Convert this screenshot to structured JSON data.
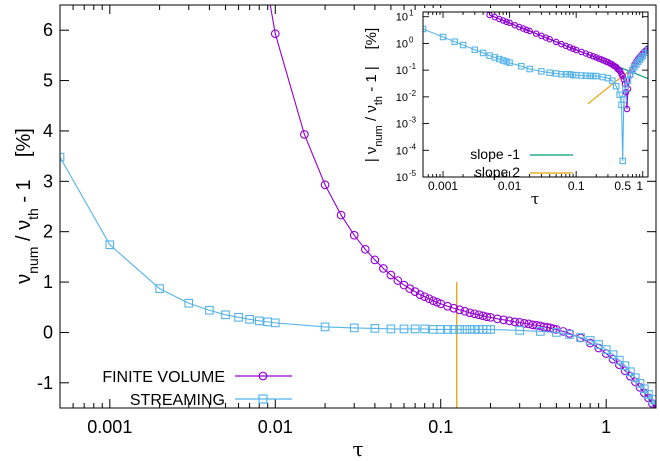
{
  "colors": {
    "finite_volume": "#9400d3",
    "streaming": "#56b4e9",
    "slope_minus1": "#009e73",
    "slope_2": "#e69f00",
    "axes": "#000000"
  },
  "chart_data": [
    {
      "type": "line",
      "xscale": "log",
      "xlim": [
        0.0005,
        2
      ],
      "ylim": [
        -1.5,
        6.5
      ],
      "xlabel": "τ",
      "ylabel": {
        "nu": "ν",
        "sub1": "num",
        "mid": " / ν",
        "sub2": "th",
        "tail": " - 1    [%]"
      },
      "xticks": [
        0.001,
        0.01,
        0.1,
        1
      ],
      "xtick_labels": [
        "0.001",
        "0.01",
        "0.1",
        "1"
      ],
      "yticks": [
        -1,
        0,
        1,
        2,
        3,
        4,
        5,
        6
      ],
      "ytick_labels": [
        "-1",
        "0",
        "1",
        "2",
        "3",
        "4",
        "5",
        "6"
      ],
      "legend_position": "bottom-left",
      "vline": {
        "x": 0.125,
        "y_range": [
          -1.5,
          1.0
        ]
      },
      "series": [
        {
          "name": "FINITE VOLUME",
          "marker": "circle",
          "x": [
            0.005,
            0.01,
            0.015,
            0.02,
            0.025,
            0.03,
            0.035,
            0.04,
            0.045,
            0.05,
            0.055,
            0.06,
            0.065,
            0.07,
            0.075,
            0.08,
            0.085,
            0.09,
            0.095,
            0.1,
            0.11,
            0.12,
            0.13,
            0.14,
            0.15,
            0.16,
            0.17,
            0.18,
            0.19,
            0.2,
            0.22,
            0.24,
            0.26,
            0.28,
            0.3,
            0.32,
            0.34,
            0.36,
            0.38,
            0.4,
            0.42,
            0.44,
            0.46,
            0.48,
            0.5,
            0.55,
            0.6,
            0.7,
            0.8,
            0.9,
            1.0,
            1.1,
            1.2,
            1.3,
            1.4,
            1.5,
            1.6,
            1.7,
            1.8,
            1.9,
            2.0
          ],
          "y": [
            11.6,
            5.93,
            3.93,
            2.93,
            2.33,
            1.93,
            1.65,
            1.44,
            1.27,
            1.14,
            1.03,
            0.94,
            0.87,
            0.81,
            0.75,
            0.71,
            0.67,
            0.63,
            0.6,
            0.57,
            0.52,
            0.48,
            0.45,
            0.42,
            0.39,
            0.37,
            0.35,
            0.33,
            0.31,
            0.3,
            0.27,
            0.25,
            0.23,
            0.21,
            0.2,
            0.18,
            0.17,
            0.15,
            0.14,
            0.13,
            0.11,
            0.1,
            0.09,
            0.07,
            0.06,
            0.02,
            -0.02,
            -0.11,
            -0.21,
            -0.31,
            -0.42,
            -0.53,
            -0.64,
            -0.76,
            -0.87,
            -0.98,
            -1.09,
            -1.2,
            -1.3,
            -1.41,
            -1.51
          ]
        },
        {
          "name": "STREAMING",
          "marker": "square",
          "x": [
            0.0005,
            0.001,
            0.002,
            0.003,
            0.004,
            0.005,
            0.006,
            0.007,
            0.008,
            0.009,
            0.01,
            0.02,
            0.03,
            0.04,
            0.05,
            0.06,
            0.07,
            0.08,
            0.09,
            0.1,
            0.11,
            0.12,
            0.13,
            0.14,
            0.15,
            0.16,
            0.17,
            0.18,
            0.19,
            0.2,
            0.3,
            0.4,
            0.5,
            0.6,
            0.7,
            0.8,
            0.9,
            1.0,
            1.1,
            1.2,
            1.3,
            1.4,
            1.5,
            1.6,
            1.7,
            1.8,
            1.9,
            2.0
          ],
          "y": [
            3.48,
            1.74,
            0.87,
            0.58,
            0.44,
            0.35,
            0.3,
            0.26,
            0.23,
            0.21,
            0.19,
            0.11,
            0.09,
            0.08,
            0.07,
            0.07,
            0.07,
            0.07,
            0.06,
            0.06,
            0.06,
            0.06,
            0.06,
            0.06,
            0.06,
            0.06,
            0.06,
            0.06,
            0.06,
            0.06,
            0.04,
            0.02,
            0.0,
            -0.04,
            -0.1,
            -0.16,
            -0.24,
            -0.34,
            -0.44,
            -0.55,
            -0.66,
            -0.78,
            -0.9,
            -1.01,
            -1.12,
            -1.23,
            -1.33,
            -1.43
          ]
        }
      ]
    },
    {
      "type": "line",
      "inset": true,
      "xscale": "log",
      "yscale": "log",
      "xlim": [
        0.0005,
        1.2
      ],
      "ylim": [
        1e-05,
        15
      ],
      "xlabel": "τ",
      "ylabel": {
        "nu": "| ν",
        "sub1": "num",
        "mid": " / ν",
        "sub2": "th",
        "tail": " - 1 |    [%]"
      },
      "xticks": [
        0.001,
        0.01,
        0.1,
        0.5
      ],
      "xtick_labels": [
        "0.001",
        "0.01",
        "0.1",
        "0.5"
      ],
      "xtick_extra_label": {
        "x": 1,
        "text": "1"
      },
      "yticks": [
        1e-05,
        0.0001,
        0.001,
        0.01,
        0.1,
        1,
        10
      ],
      "ytick_labels": [
        [
          "10",
          "-5"
        ],
        [
          "10",
          "-4"
        ],
        [
          "10",
          "-3"
        ],
        [
          "10",
          "-2"
        ],
        [
          "10",
          "-1"
        ],
        [
          "10",
          "0"
        ],
        [
          "10",
          "1"
        ]
      ],
      "legend_position": "bottom-left",
      "reference_lines": [
        {
          "name": "slope -1",
          "x": [
            0.005,
            1.2
          ],
          "y": [
            11.6,
            0.0483
          ]
        },
        {
          "name": "slope 2",
          "x": [
            0.15,
            1.0
          ],
          "y": [
            0.0055,
            0.245
          ]
        }
      ],
      "series": [
        {
          "name": "FINITE VOLUME",
          "marker": "circle",
          "x": [
            0.005,
            0.006,
            0.007,
            0.008,
            0.009,
            0.01,
            0.012,
            0.014,
            0.016,
            0.018,
            0.02,
            0.025,
            0.03,
            0.035,
            0.04,
            0.05,
            0.06,
            0.07,
            0.08,
            0.09,
            0.1,
            0.12,
            0.14,
            0.16,
            0.18,
            0.2,
            0.22,
            0.24,
            0.26,
            0.28,
            0.3,
            0.32,
            0.34,
            0.36,
            0.38,
            0.4,
            0.42,
            0.44,
            0.46,
            0.48,
            0.5,
            0.52,
            0.54,
            0.56,
            0.58,
            0.6,
            0.65,
            0.7,
            0.75,
            0.8,
            0.85,
            0.9,
            0.95,
            1.0,
            1.05,
            1.1,
            1.15,
            1.2
          ],
          "y": [
            11.6,
            9.6,
            8.2,
            7.2,
            6.4,
            5.93,
            4.8,
            4.1,
            3.6,
            3.2,
            2.93,
            2.33,
            1.93,
            1.65,
            1.44,
            1.14,
            0.94,
            0.81,
            0.71,
            0.63,
            0.57,
            0.48,
            0.42,
            0.37,
            0.33,
            0.3,
            0.27,
            0.25,
            0.23,
            0.21,
            0.2,
            0.18,
            0.17,
            0.15,
            0.14,
            0.13,
            0.11,
            0.1,
            0.09,
            0.07,
            0.06,
            0.045,
            0.03,
            0.015,
            0.0035,
            0.02,
            0.065,
            0.11,
            0.16,
            0.21,
            0.26,
            0.31,
            0.36,
            0.42,
            0.47,
            0.53,
            0.58,
            0.64
          ]
        },
        {
          "name": "STREAMING",
          "marker": "square",
          "x": [
            0.0005,
            0.001,
            0.0015,
            0.002,
            0.003,
            0.004,
            0.005,
            0.006,
            0.007,
            0.008,
            0.009,
            0.01,
            0.015,
            0.02,
            0.03,
            0.04,
            0.05,
            0.06,
            0.07,
            0.08,
            0.09,
            0.1,
            0.12,
            0.14,
            0.16,
            0.18,
            0.2,
            0.25,
            0.3,
            0.35,
            0.4,
            0.45,
            0.48,
            0.5,
            0.52,
            0.55,
            0.6,
            0.65,
            0.7,
            0.75,
            0.8,
            0.85,
            0.9,
            0.95,
            1.0,
            1.1,
            1.2
          ],
          "y": [
            3.48,
            1.74,
            1.16,
            0.87,
            0.58,
            0.44,
            0.35,
            0.3,
            0.26,
            0.23,
            0.21,
            0.19,
            0.14,
            0.11,
            0.09,
            0.08,
            0.075,
            0.07,
            0.07,
            0.07,
            0.065,
            0.065,
            0.063,
            0.062,
            0.061,
            0.06,
            0.06,
            0.055,
            0.05,
            0.04,
            0.025,
            0.012,
            0.005,
            4e-05,
            0.008,
            0.02,
            0.04,
            0.07,
            0.1,
            0.13,
            0.16,
            0.2,
            0.24,
            0.29,
            0.34,
            0.44,
            0.55
          ]
        }
      ]
    }
  ]
}
